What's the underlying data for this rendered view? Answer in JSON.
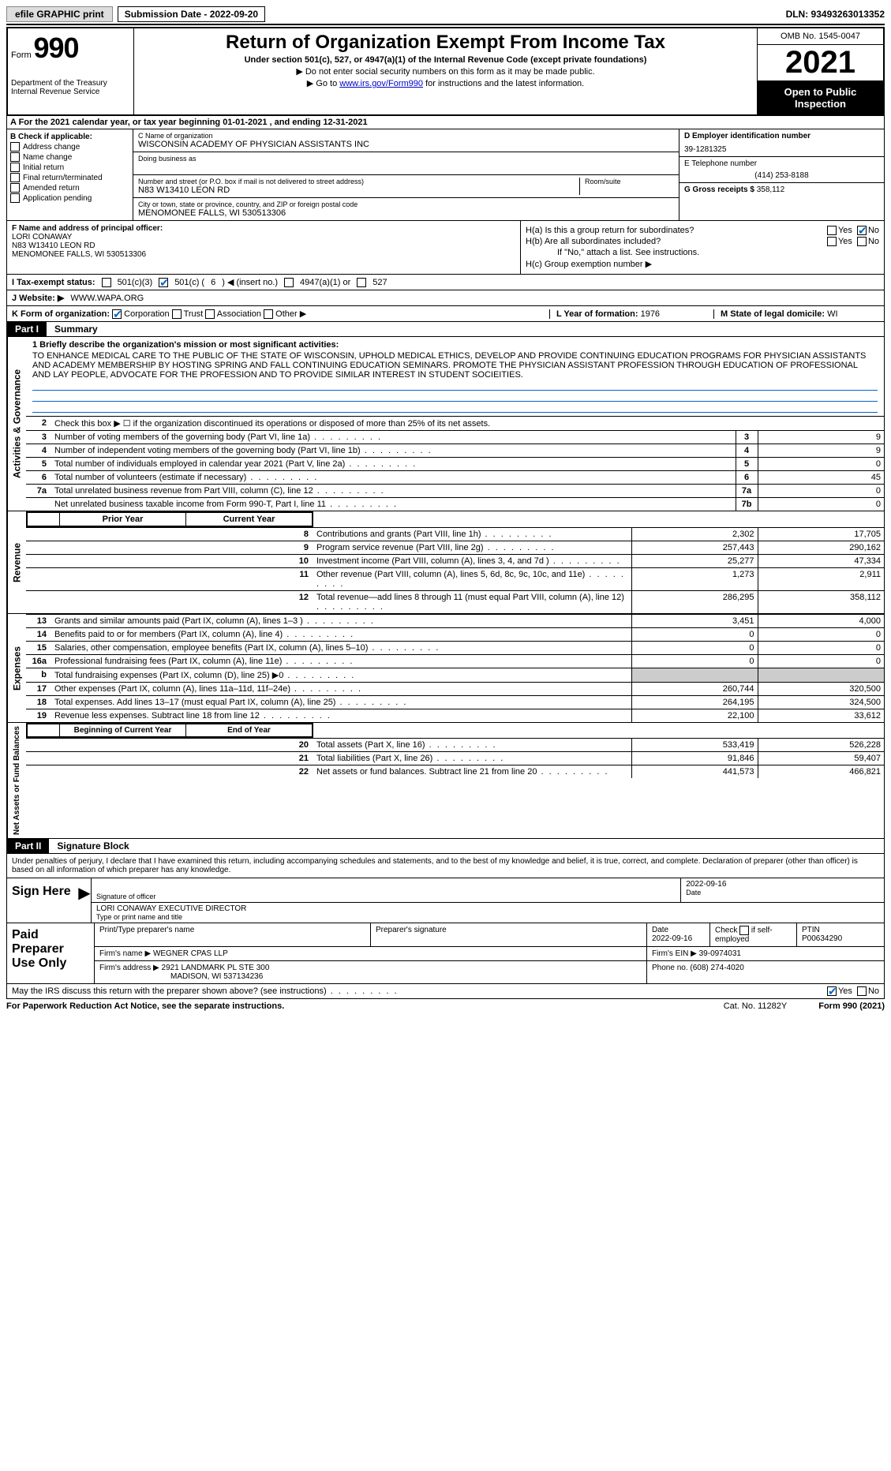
{
  "top_bar": {
    "efile_label": "efile GRAPHIC print",
    "submission_label": "Submission Date - 2022-09-20",
    "dln": "DLN: 93493263013352"
  },
  "header": {
    "form_prefix": "Form",
    "form_number": "990",
    "dept": "Department of the Treasury",
    "irs": "Internal Revenue Service",
    "title": "Return of Organization Exempt From Income Tax",
    "subtitle": "Under section 501(c), 527, or 4947(a)(1) of the Internal Revenue Code (except private foundations)",
    "note1": "▶ Do not enter social security numbers on this form as it may be made public.",
    "note2_pre": "▶ Go to ",
    "note2_link": "www.irs.gov/Form990",
    "note2_post": " for instructions and the latest information.",
    "omb": "OMB No. 1545-0047",
    "year": "2021",
    "open_public": "Open to Public Inspection"
  },
  "section_a": "A For the 2021 calendar year, or tax year beginning 01-01-2021    , and ending 12-31-2021",
  "section_b": {
    "title": "B Check if applicable:",
    "items": [
      "Address change",
      "Name change",
      "Initial return",
      "Final return/terminated",
      "Amended return",
      "Application pending"
    ]
  },
  "section_c": {
    "name_label": "C Name of organization",
    "org_name": "WISCONSIN ACADEMY OF PHYSICIAN ASSISTANTS INC",
    "dba_label": "Doing business as",
    "street_label": "Number and street (or P.O. box if mail is not delivered to street address)",
    "street": "N83 W13410 LEON RD",
    "room_label": "Room/suite",
    "city_label": "City or town, state or province, country, and ZIP or foreign postal code",
    "city": "MENOMONEE FALLS, WI  530513306"
  },
  "section_d": {
    "ein_label": "D Employer identification number",
    "ein": "39-1281325",
    "phone_label": "E Telephone number",
    "phone": "(414) 253-8188",
    "gross_label": "G Gross receipts $",
    "gross": "358,112"
  },
  "section_f": {
    "label": "F Name and address of principal officer:",
    "name": "LORI CONAWAY",
    "addr1": "N83 W13410 LEON RD",
    "addr2": "MENOMONEE FALLS, WI  530513306"
  },
  "section_h": {
    "ha_label": "H(a)  Is this a group return for subordinates?",
    "hb_label": "H(b)  Are all subordinates included?",
    "hb_note": "If \"No,\" attach a list. See instructions.",
    "hc_label": "H(c)  Group exemption number ▶"
  },
  "section_i": {
    "label": "I   Tax-exempt status:",
    "opt1": "501(c)(3)",
    "opt2_pre": "501(c) (",
    "opt2_num": "6",
    "opt2_post": ") ◀ (insert no.)",
    "opt3": "4947(a)(1) or",
    "opt4": "527"
  },
  "section_j": {
    "label": "J   Website: ▶",
    "value": "WWW.WAPA.ORG"
  },
  "section_k": {
    "label": "K Form of organization:",
    "opts": [
      "Corporation",
      "Trust",
      "Association",
      "Other ▶"
    ]
  },
  "section_l": {
    "label": "L Year of formation:",
    "value": "1976"
  },
  "section_m": {
    "label": "M State of legal domicile:",
    "value": "WI"
  },
  "part1": {
    "label": "Part I",
    "title": "Summary"
  },
  "mission": {
    "line1_label": "1  Briefly describe the organization's mission or most significant activities:",
    "text": "TO ENHANCE MEDICAL CARE TO THE PUBLIC OF THE STATE OF WISCONSIN, UPHOLD MEDICAL ETHICS, DEVELOP AND PROVIDE CONTINUING EDUCATION PROGRAMS FOR PHYSICIAN ASSISTANTS AND ACADEMY MEMBERSHIP BY HOSTING SPRING AND FALL CONTINUING EDUCATION SEMINARS. PROMOTE THE PHYSICIAN ASSISTANT PROFESSION THROUGH EDUCATION OF PROFESSIONAL AND LAY PEOPLE, ADVOCATE FOR THE PROFESSION AND TO PROVIDE SIMILAR INTEREST IN STUDENT SOCIEITIES."
  },
  "governance_rows": [
    {
      "num": "2",
      "text": "Check this box ▶ ☐  if the organization discontinued its operations or disposed of more than 25% of its net assets.",
      "boxnum": "",
      "val": ""
    },
    {
      "num": "3",
      "text": "Number of voting members of the governing body (Part VI, line 1a)",
      "boxnum": "3",
      "val": "9"
    },
    {
      "num": "4",
      "text": "Number of independent voting members of the governing body (Part VI, line 1b)",
      "boxnum": "4",
      "val": "9"
    },
    {
      "num": "5",
      "text": "Total number of individuals employed in calendar year 2021 (Part V, line 2a)",
      "boxnum": "5",
      "val": "0"
    },
    {
      "num": "6",
      "text": "Total number of volunteers (estimate if necessary)",
      "boxnum": "6",
      "val": "45"
    },
    {
      "num": "7a",
      "text": "Total unrelated business revenue from Part VIII, column (C), line 12",
      "boxnum": "7a",
      "val": "0"
    },
    {
      "num": "",
      "text": "Net unrelated business taxable income from Form 990-T, Part I, line 11",
      "boxnum": "7b",
      "val": "0"
    }
  ],
  "rev_header": {
    "prior": "Prior Year",
    "current": "Current Year"
  },
  "revenue_rows": [
    {
      "num": "8",
      "text": "Contributions and grants (Part VIII, line 1h)",
      "prior": "2,302",
      "curr": "17,705"
    },
    {
      "num": "9",
      "text": "Program service revenue (Part VIII, line 2g)",
      "prior": "257,443",
      "curr": "290,162"
    },
    {
      "num": "10",
      "text": "Investment income (Part VIII, column (A), lines 3, 4, and 7d )",
      "prior": "25,277",
      "curr": "47,334"
    },
    {
      "num": "11",
      "text": "Other revenue (Part VIII, column (A), lines 5, 6d, 8c, 9c, 10c, and 11e)",
      "prior": "1,273",
      "curr": "2,911"
    },
    {
      "num": "12",
      "text": "Total revenue—add lines 8 through 11 (must equal Part VIII, column (A), line 12)",
      "prior": "286,295",
      "curr": "358,112"
    }
  ],
  "expense_rows": [
    {
      "num": "13",
      "text": "Grants and similar amounts paid (Part IX, column (A), lines 1–3 )",
      "prior": "3,451",
      "curr": "4,000"
    },
    {
      "num": "14",
      "text": "Benefits paid to or for members (Part IX, column (A), line 4)",
      "prior": "0",
      "curr": "0"
    },
    {
      "num": "15",
      "text": "Salaries, other compensation, employee benefits (Part IX, column (A), lines 5–10)",
      "prior": "0",
      "curr": "0"
    },
    {
      "num": "16a",
      "text": "Professional fundraising fees (Part IX, column (A), line 11e)",
      "prior": "0",
      "curr": "0"
    },
    {
      "num": "b",
      "text": "Total fundraising expenses (Part IX, column (D), line 25) ▶0",
      "prior": "",
      "curr": "",
      "shaded": true
    },
    {
      "num": "17",
      "text": "Other expenses (Part IX, column (A), lines 11a–11d, 11f–24e)",
      "prior": "260,744",
      "curr": "320,500"
    },
    {
      "num": "18",
      "text": "Total expenses. Add lines 13–17 (must equal Part IX, column (A), line 25)",
      "prior": "264,195",
      "curr": "324,500"
    },
    {
      "num": "19",
      "text": "Revenue less expenses. Subtract line 18 from line 12",
      "prior": "22,100",
      "curr": "33,612"
    }
  ],
  "netassets_header": {
    "prior": "Beginning of Current Year",
    "current": "End of Year"
  },
  "netassets_rows": [
    {
      "num": "20",
      "text": "Total assets (Part X, line 16)",
      "prior": "533,419",
      "curr": "526,228"
    },
    {
      "num": "21",
      "text": "Total liabilities (Part X, line 26)",
      "prior": "91,846",
      "curr": "59,407"
    },
    {
      "num": "22",
      "text": "Net assets or fund balances. Subtract line 21 from line 20",
      "prior": "441,573",
      "curr": "466,821"
    }
  ],
  "vert_labels": {
    "governance": "Activities & Governance",
    "revenue": "Revenue",
    "expenses": "Expenses",
    "netassets": "Net Assets or Fund Balances"
  },
  "part2": {
    "label": "Part II",
    "title": "Signature Block"
  },
  "sig": {
    "declaration": "Under penalties of perjury, I declare that I have examined this return, including accompanying schedules and statements, and to the best of my knowledge and belief, it is true, correct, and complete. Declaration of preparer (other than officer) is based on all information of which preparer has any knowledge.",
    "sign_here": "Sign Here",
    "sig_officer_caption": "Signature of officer",
    "date": "2022-09-16",
    "date_caption": "Date",
    "officer_name": "LORI CONAWAY  EXECUTIVE DIRECTOR",
    "officer_caption": "Type or print name and title"
  },
  "preparer": {
    "label": "Paid Preparer Use Only",
    "h1": "Print/Type preparer's name",
    "h2": "Preparer's signature",
    "h3": "Date",
    "h4_pre": "Check",
    "h4_post": "if self-employed",
    "h5": "PTIN",
    "date": "2022-09-16",
    "ptin": "P00634290",
    "firm_name_label": "Firm's name     ▶",
    "firm_name": "WEGNER CPAS LLP",
    "firm_ein_label": "Firm's EIN ▶",
    "firm_ein": "39-0974031",
    "firm_addr_label": "Firm's address ▶",
    "firm_addr1": "2921 LANDMARK PL STE 300",
    "firm_addr2": "MADISON, WI  537134236",
    "phone_label": "Phone no.",
    "phone": "(608) 274-4020"
  },
  "discuss": "May the IRS discuss this return with the preparer shown above? (see instructions)",
  "footer": {
    "left": "For Paperwork Reduction Act Notice, see the separate instructions.",
    "center": "Cat. No. 11282Y",
    "right_pre": "Form ",
    "right_form": "990",
    "right_post": " (2021)"
  },
  "yn": {
    "yes": "Yes",
    "no": "No"
  }
}
